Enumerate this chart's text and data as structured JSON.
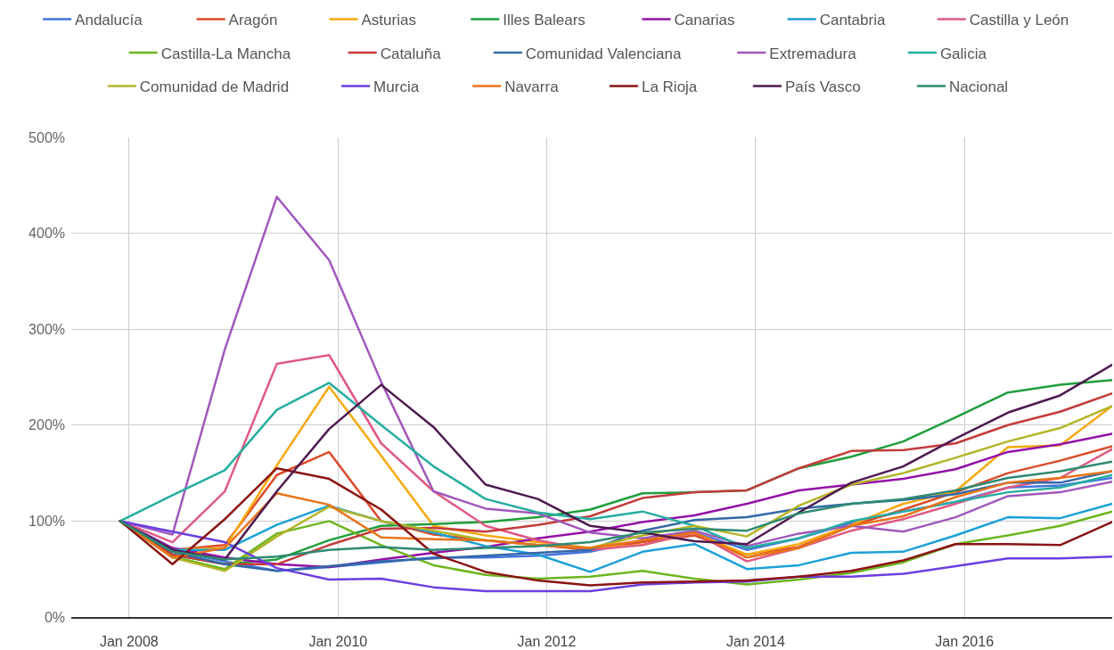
{
  "chart_data": {
    "type": "line",
    "x": [
      "2007-12",
      "2008-06",
      "2008-12",
      "2009-06",
      "2009-12",
      "2010-06",
      "2010-12",
      "2011-06",
      "2011-12",
      "2012-06",
      "2012-12",
      "2013-06",
      "2013-12",
      "2014-06",
      "2014-12",
      "2015-06",
      "2015-12",
      "2016-06",
      "2016-12",
      "2017-06"
    ],
    "series": [
      {
        "name": "Andalucía",
        "color": "#4374e0",
        "values": [
          100,
          70,
          58,
          48,
          52,
          57,
          62,
          62,
          64,
          68,
          80,
          88,
          70,
          82,
          98,
          110,
          120,
          135,
          137,
          145
        ]
      },
      {
        "name": "Aragón",
        "color": "#dc4b29",
        "values": [
          100,
          70,
          75,
          148,
          172,
          100,
          86,
          80,
          75,
          70,
          78,
          85,
          65,
          73,
          95,
          112,
          130,
          150,
          163,
          178
        ]
      },
      {
        "name": "Asturias",
        "color": "#f6a90f",
        "values": [
          100,
          70,
          72,
          158,
          240,
          168,
          95,
          85,
          78,
          72,
          75,
          88,
          65,
          76,
          96,
          118,
          131,
          177,
          179,
          220
        ]
      },
      {
        "name": "Illes Balears",
        "color": "#1e9e3c",
        "values": [
          100,
          65,
          55,
          60,
          80,
          95,
          97,
          99,
          104,
          112,
          129,
          130,
          132,
          155,
          167,
          183,
          208,
          234,
          242,
          247
        ]
      },
      {
        "name": "Canarias",
        "color": "#9411a8",
        "values": [
          100,
          72,
          62,
          55,
          52,
          60,
          67,
          73,
          82,
          89,
          99,
          106,
          118,
          132,
          138,
          144,
          154,
          172,
          180,
          191
        ]
      },
      {
        "name": "Cantabria",
        "color": "#1ba1d6",
        "values": [
          100,
          70,
          70,
          96,
          116,
          100,
          88,
          74,
          65,
          47,
          68,
          76,
          50,
          54,
          67,
          68,
          85,
          104,
          103,
          118
        ]
      },
      {
        "name": "Castilla y León",
        "color": "#e05a82",
        "values": [
          100,
          78,
          131,
          264,
          273,
          181,
          131,
          95,
          80,
          70,
          75,
          88,
          58,
          72,
          90,
          102,
          118,
          135,
          145,
          175
        ]
      },
      {
        "name": "Castilla-La Mancha",
        "color": "#6db51e",
        "values": [
          100,
          63,
          50,
          87,
          100,
          75,
          54,
          44,
          40,
          42,
          48,
          40,
          34,
          39,
          46,
          57,
          76,
          85,
          95,
          110
        ]
      },
      {
        "name": "Cataluña",
        "color": "#c33b3b",
        "values": [
          100,
          65,
          55,
          55,
          75,
          92,
          93,
          89,
          96,
          105,
          124,
          130,
          132,
          155,
          173,
          174,
          181,
          200,
          214,
          233
        ]
      },
      {
        "name": "Comunidad Valenciana",
        "color": "#3468a6",
        "values": [
          100,
          68,
          55,
          48,
          53,
          58,
          61,
          64,
          67,
          70,
          90,
          101,
          104,
          113,
          118,
          122,
          128,
          140,
          140,
          152
        ]
      },
      {
        "name": "Extremadura",
        "color": "#a158bc",
        "values": [
          100,
          86,
          279,
          438,
          372,
          245,
          131,
          113,
          108,
          88,
          82,
          90,
          74,
          87,
          95,
          89,
          104,
          126,
          130,
          141
        ]
      },
      {
        "name": "Galicia",
        "color": "#26ada1",
        "values": [
          100,
          127,
          153,
          216,
          244,
          200,
          157,
          123,
          109,
          102,
          110,
          95,
          72,
          82,
          100,
          110,
          120,
          130,
          135,
          148
        ]
      },
      {
        "name": "Comunidad de Madrid",
        "color": "#b4b428",
        "values": [
          100,
          62,
          48,
          84,
          115,
          100,
          90,
          80,
          75,
          72,
          85,
          95,
          84,
          116,
          138,
          150,
          166,
          183,
          197,
          220
        ]
      },
      {
        "name": "Murcia",
        "color": "#6c3fe1",
        "values": [
          100,
          89,
          78,
          51,
          39,
          40,
          31,
          27,
          27,
          27,
          34,
          36,
          37,
          42,
          42,
          45,
          53,
          61,
          61,
          63
        ]
      },
      {
        "name": "Navarra",
        "color": "#e8741a",
        "values": [
          100,
          62,
          72,
          129,
          117,
          83,
          81,
          80,
          75,
          72,
          80,
          88,
          62,
          72,
          95,
          105,
          125,
          140,
          145,
          152
        ]
      },
      {
        "name": "La Rioja",
        "color": "#8b1414",
        "values": [
          100,
          55,
          102,
          155,
          144,
          112,
          66,
          47,
          38,
          33,
          36,
          37,
          38,
          42,
          48,
          59,
          76,
          76,
          75,
          99
        ]
      },
      {
        "name": "País Vasco",
        "color": "#4e1a50",
        "values": [
          100,
          70,
          60,
          131,
          196,
          242,
          198,
          138,
          123,
          95,
          88,
          79,
          76,
          109,
          140,
          157,
          186,
          213,
          231,
          263
        ]
      },
      {
        "name": "Nacional",
        "color": "#2e8a73",
        "values": [
          100,
          68,
          60,
          63,
          70,
          73,
          70,
          72,
          74,
          78,
          88,
          92,
          90,
          108,
          118,
          123,
          132,
          145,
          152,
          162
        ]
      }
    ],
    "xlim": [
      "2007-06-13",
      "2017-06-01"
    ],
    "xticks": [
      {
        "value": "2008-01-01",
        "label": "Jan 2008"
      },
      {
        "value": "2010-01-01",
        "label": "Jan 2010"
      },
      {
        "value": "2012-01-01",
        "label": "Jan 2012"
      },
      {
        "value": "2014-01-01",
        "label": "Jan 2014"
      },
      {
        "value": "2016-01-01",
        "label": "Jan 2016"
      }
    ],
    "ylim": [
      0,
      500
    ],
    "yticks": [
      {
        "value": 0,
        "label": "0%"
      },
      {
        "value": 100,
        "label": "100%"
      },
      {
        "value": 200,
        "label": "200%"
      },
      {
        "value": 300,
        "label": "300%"
      },
      {
        "value": 400,
        "label": "400%"
      },
      {
        "value": 500,
        "label": "500%"
      }
    ],
    "grid": true,
    "legend": "top"
  }
}
